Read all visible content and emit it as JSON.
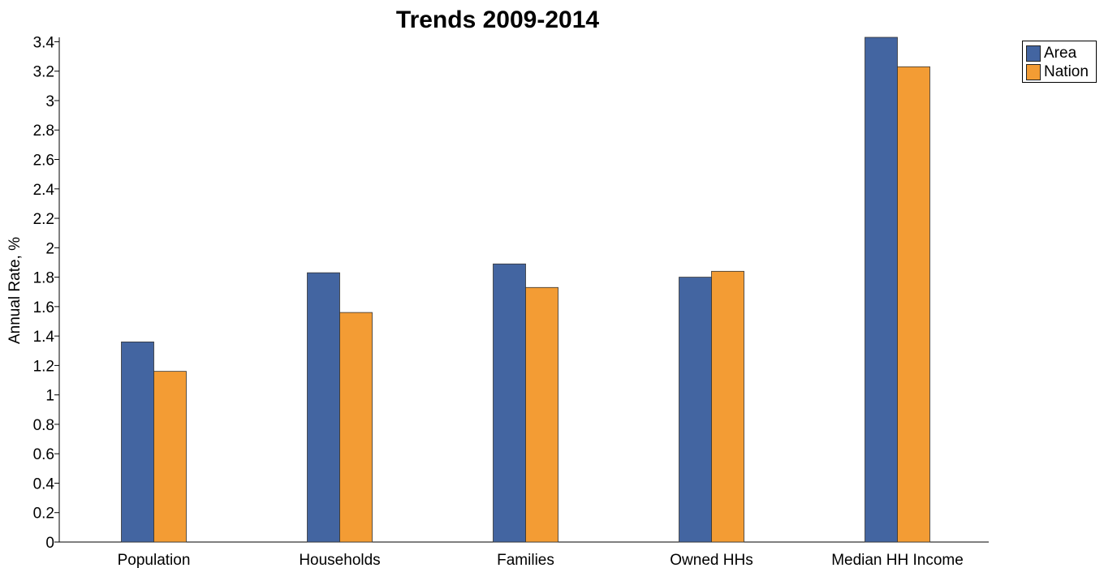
{
  "chart_data": {
    "type": "bar",
    "title": "Trends 2009-2014",
    "ylabel": "Annual Rate, %",
    "xlabel": "",
    "categories": [
      "Population",
      "Households",
      "Families",
      "Owned HHs",
      "Median HH Income"
    ],
    "series": [
      {
        "name": "Area",
        "color": "#4365a1",
        "values": [
          1.36,
          1.83,
          1.89,
          1.8,
          3.43
        ]
      },
      {
        "name": "Nation",
        "color": "#f39c34",
        "values": [
          1.16,
          1.56,
          1.73,
          1.84,
          3.23
        ]
      }
    ],
    "ylim": [
      0,
      3.43
    ],
    "yticks": [
      "0",
      "0.2",
      "0.4",
      "0.6",
      "0.8",
      "1",
      "1.2",
      "1.4",
      "1.6",
      "1.8",
      "2",
      "2.2",
      "2.4",
      "2.6",
      "2.8",
      "3",
      "3.2",
      "3.4"
    ],
    "grid": false,
    "legend_position": "top-right"
  }
}
